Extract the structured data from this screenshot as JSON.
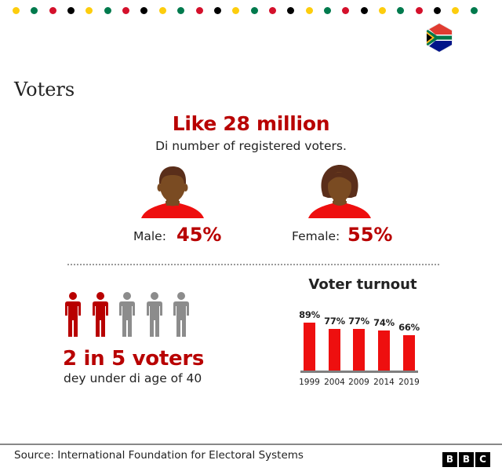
{
  "decor": {
    "dot_colors": [
      "#fdcd0d",
      "#007a4d",
      "#d4102b",
      "#000000",
      "#fdcd0d",
      "#007a4d",
      "#d4102b",
      "#000000",
      "#fdcd0d",
      "#007a4d",
      "#d4102b",
      "#000000",
      "#fdcd0d",
      "#007a4d",
      "#d4102b",
      "#000000",
      "#fdcd0d",
      "#007a4d",
      "#d4102b",
      "#000000",
      "#fdcd0d",
      "#007a4d",
      "#d4102b",
      "#000000",
      "#fdcd0d",
      "#007a4d"
    ],
    "flag_icon": "south-africa-flag-hexagon"
  },
  "header": {
    "title": "Voters"
  },
  "registered": {
    "headline": "Like 28 million",
    "caption": "Di number of registered voters."
  },
  "gender": {
    "male": {
      "label": "Male:",
      "value": "45%",
      "icon": "male-person-icon"
    },
    "female": {
      "label": "Female:",
      "value": "55%",
      "icon": "female-person-icon"
    }
  },
  "age": {
    "headline": "2 in 5 voters",
    "caption": "dey under di age of 40",
    "highlighted": 2,
    "total": 5,
    "highlight_color": "#b80000",
    "base_color": "#8c8c8c"
  },
  "chart_data": {
    "type": "bar",
    "title": "Voter turnout",
    "categories": [
      "1999",
      "2004",
      "2009",
      "2014",
      "2019"
    ],
    "values": [
      89,
      77,
      77,
      74,
      66
    ],
    "labels": [
      "89%",
      "77%",
      "77%",
      "74%",
      "66%"
    ],
    "xlabel": "",
    "ylabel": "",
    "ylim": [
      0,
      100
    ],
    "grid": false,
    "bar_color": "#ee0f0f"
  },
  "footer": {
    "source": "Source: International Foundation for Electoral Systems",
    "logo": [
      "B",
      "B",
      "C"
    ]
  },
  "colors": {
    "accent": "#b80000",
    "bar": "#ee0f0f",
    "text": "#222222"
  }
}
